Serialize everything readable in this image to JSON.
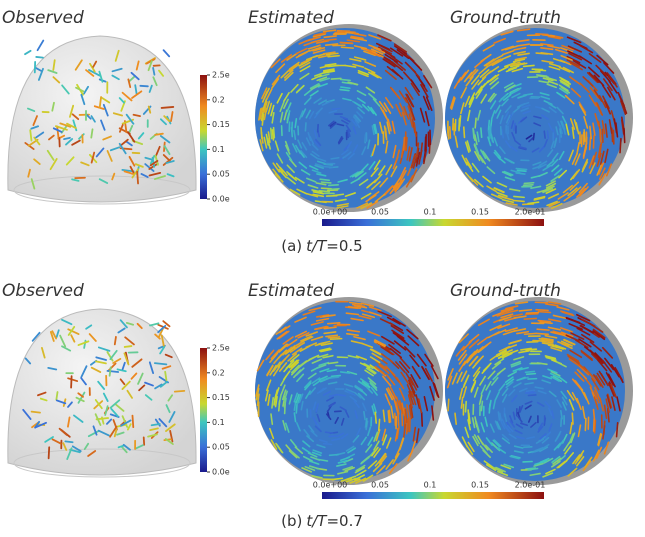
{
  "figure": {
    "panels": [
      {
        "observed_label": "Observed",
        "estimated_label": "Estimated",
        "ground_truth_label": "Ground-truth",
        "vertical_colorbar_ticks": [
          "2.5e",
          "0.2",
          "0.15",
          "0.1",
          "0.05",
          "0.0e"
        ],
        "horizontal_colorbar_ticks": [
          "0.0e+00",
          "0.05",
          "0.1",
          "0.15",
          "2.0e-01"
        ],
        "caption": {
          "label": "(a)",
          "variable": "t/T",
          "value": "=0.5"
        }
      },
      {
        "observed_label": "Observed",
        "estimated_label": "Estimated",
        "ground_truth_label": "Ground-truth",
        "vertical_colorbar_ticks": [
          "2.5e",
          "0.2",
          "0.15",
          "0.1",
          "0.05",
          "0.0e"
        ],
        "horizontal_colorbar_ticks": [
          "0.0e+00",
          "0.05",
          "0.1",
          "0.15",
          "2.0e-01"
        ],
        "caption": {
          "label": "(b)",
          "variable": "t/T",
          "value": "=0.7"
        }
      }
    ]
  }
}
